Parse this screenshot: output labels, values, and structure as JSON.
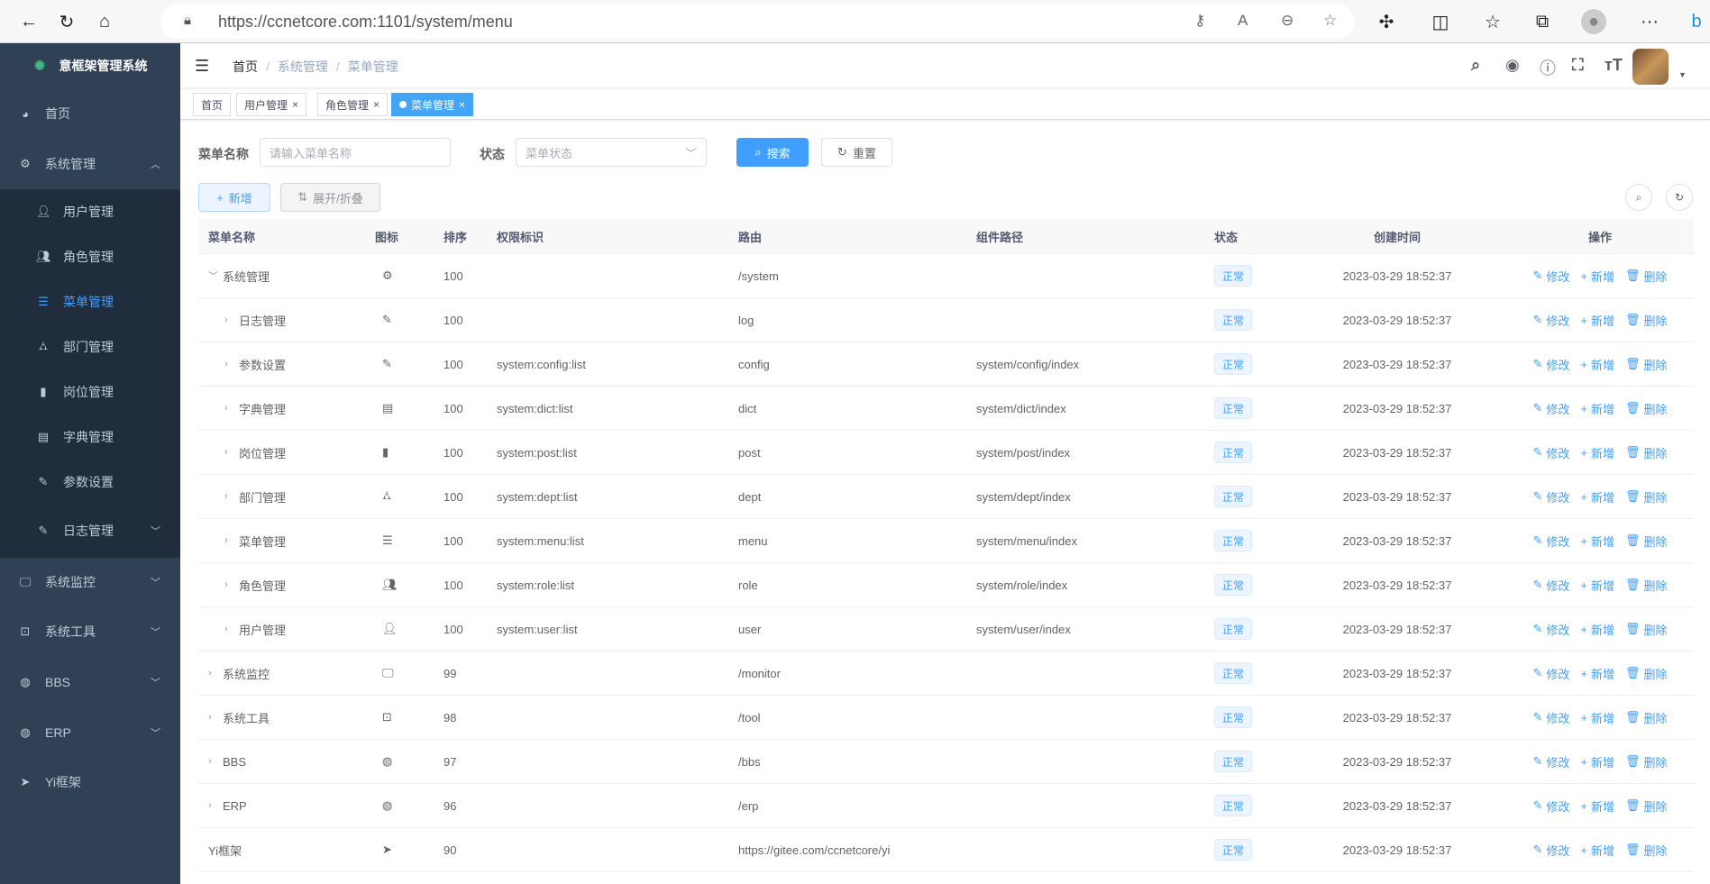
{
  "browser": {
    "url": "https://ccnetcore.com:1101/system/menu"
  },
  "sidebar": {
    "title": "意框架管理系统",
    "items": [
      {
        "label": "首页",
        "icon": "dashboard-icon"
      },
      {
        "label": "系统管理",
        "icon": "gear-icon",
        "expanded": true
      },
      {
        "label": "系统监控",
        "icon": "monitor-icon"
      },
      {
        "label": "系统工具",
        "icon": "toolbox-icon"
      },
      {
        "label": "BBS",
        "icon": "globe-icon"
      },
      {
        "label": "ERP",
        "icon": "globe-icon"
      },
      {
        "label": "Yi框架",
        "icon": "paper-plane-icon"
      }
    ],
    "sub_items": [
      {
        "label": "用户管理",
        "icon": "user-icon"
      },
      {
        "label": "角色管理",
        "icon": "users-icon"
      },
      {
        "label": "菜单管理",
        "icon": "tree-table-icon",
        "active": true
      },
      {
        "label": "部门管理",
        "icon": "org-tree-icon"
      },
      {
        "label": "岗位管理",
        "icon": "post-icon"
      },
      {
        "label": "字典管理",
        "icon": "dict-icon"
      },
      {
        "label": "参数设置",
        "icon": "edit-icon"
      },
      {
        "label": "日志管理",
        "icon": "log-icon"
      }
    ]
  },
  "navbar": {
    "breadcrumb": [
      "首页",
      "系统管理",
      "菜单管理"
    ]
  },
  "tags": [
    {
      "label": "首页"
    },
    {
      "label": "用户管理"
    },
    {
      "label": "角色管理"
    },
    {
      "label": "菜单管理",
      "active": true
    }
  ],
  "search": {
    "name_label": "菜单名称",
    "name_placeholder": "请输入菜单名称",
    "status_label": "状态",
    "status_placeholder": "菜单状态",
    "search_btn": "搜索",
    "reset_btn": "重置"
  },
  "toolbar": {
    "add_btn": "新增",
    "toggle_btn": "展开/折叠"
  },
  "table": {
    "headers": [
      "菜单名称",
      "图标",
      "排序",
      "权限标识",
      "路由",
      "组件路径",
      "状态",
      "创建时间",
      "操作"
    ],
    "actions": [
      "修改",
      "新增",
      "删除"
    ],
    "rows": [
      {
        "name": "系统管理",
        "level": 0,
        "expand": "open",
        "icon": "gear-icon",
        "sort": "100",
        "perms": "",
        "route": "/system",
        "component": "",
        "status": "正常",
        "time": "2023-03-29 18:52:37"
      },
      {
        "name": "日志管理",
        "level": 1,
        "expand": "closed",
        "icon": "log-icon",
        "sort": "100",
        "perms": "",
        "route": "log",
        "component": "",
        "status": "正常",
        "time": "2023-03-29 18:52:37"
      },
      {
        "name": "参数设置",
        "level": 1,
        "expand": "closed",
        "icon": "edit-icon",
        "sort": "100",
        "perms": "system:config:list",
        "route": "config",
        "component": "system/config/index",
        "status": "正常",
        "time": "2023-03-29 18:52:37"
      },
      {
        "name": "字典管理",
        "level": 1,
        "expand": "closed",
        "icon": "dict-icon",
        "sort": "100",
        "perms": "system:dict:list",
        "route": "dict",
        "component": "system/dict/index",
        "status": "正常",
        "time": "2023-03-29 18:52:37"
      },
      {
        "name": "岗位管理",
        "level": 1,
        "expand": "closed",
        "icon": "post-icon",
        "sort": "100",
        "perms": "system:post:list",
        "route": "post",
        "component": "system/post/index",
        "status": "正常",
        "time": "2023-03-29 18:52:37"
      },
      {
        "name": "部门管理",
        "level": 1,
        "expand": "closed",
        "icon": "org-tree-icon",
        "sort": "100",
        "perms": "system:dept:list",
        "route": "dept",
        "component": "system/dept/index",
        "status": "正常",
        "time": "2023-03-29 18:52:37"
      },
      {
        "name": "菜单管理",
        "level": 1,
        "expand": "closed",
        "icon": "tree-table-icon",
        "sort": "100",
        "perms": "system:menu:list",
        "route": "menu",
        "component": "system/menu/index",
        "status": "正常",
        "time": "2023-03-29 18:52:37"
      },
      {
        "name": "角色管理",
        "level": 1,
        "expand": "closed",
        "icon": "users-icon",
        "sort": "100",
        "perms": "system:role:list",
        "route": "role",
        "component": "system/role/index",
        "status": "正常",
        "time": "2023-03-29 18:52:37"
      },
      {
        "name": "用户管理",
        "level": 1,
        "expand": "closed",
        "icon": "user-icon",
        "sort": "100",
        "perms": "system:user:list",
        "route": "user",
        "component": "system/user/index",
        "status": "正常",
        "time": "2023-03-29 18:52:37"
      },
      {
        "name": "系统监控",
        "level": 0,
        "expand": "closed",
        "icon": "monitor-icon",
        "sort": "99",
        "perms": "",
        "route": "/monitor",
        "component": "",
        "status": "正常",
        "time": "2023-03-29 18:52:37"
      },
      {
        "name": "系统工具",
        "level": 0,
        "expand": "closed",
        "icon": "toolbox-icon",
        "sort": "98",
        "perms": "",
        "route": "/tool",
        "component": "",
        "status": "正常",
        "time": "2023-03-29 18:52:37"
      },
      {
        "name": "BBS",
        "level": 0,
        "expand": "closed",
        "icon": "globe-icon",
        "sort": "97",
        "perms": "",
        "route": "/bbs",
        "component": "",
        "status": "正常",
        "time": "2023-03-29 18:52:37"
      },
      {
        "name": "ERP",
        "level": 0,
        "expand": "closed",
        "icon": "globe-icon",
        "sort": "96",
        "perms": "",
        "route": "/erp",
        "component": "",
        "status": "正常",
        "time": "2023-03-29 18:52:37"
      },
      {
        "name": "Yi框架",
        "level": 0,
        "expand": "none",
        "icon": "paper-plane-icon",
        "sort": "90",
        "perms": "",
        "route": "https://gitee.com/ccnetcore/yi",
        "component": "",
        "status": "正常",
        "time": "2023-03-29 18:52:37"
      }
    ]
  },
  "colors": {
    "sidebar": "#304156",
    "submenu": "#1f2d3d",
    "accent": "#409eff"
  }
}
